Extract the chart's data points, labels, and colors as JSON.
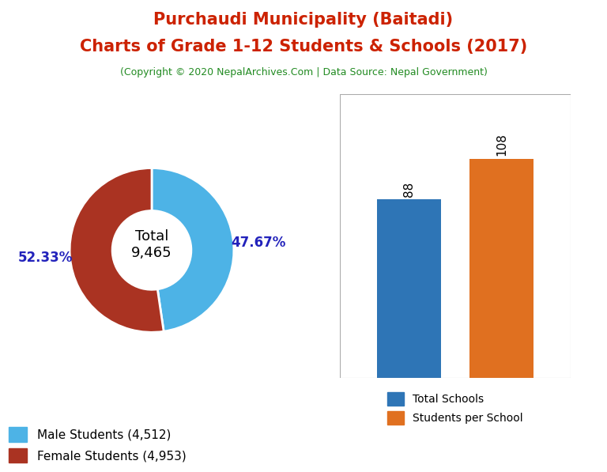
{
  "title_line1": "Purchaudi Municipality (Baitadi)",
  "title_line2": "Charts of Grade 1-12 Students & Schools (2017)",
  "subtitle": "(Copyright © 2020 NepalArchives.Com | Data Source: Nepal Government)",
  "title_color": "#cc2200",
  "subtitle_color": "#228B22",
  "male_pct": 47.67,
  "female_pct": 52.33,
  "donut_colors": [
    "#4db3e6",
    "#aa3322"
  ],
  "male_label": "Male Students (4,512)",
  "female_label": "Female Students (4,953)",
  "total_label": "Total\n9,465",
  "pct_color": "#2222bb",
  "bar_values": [
    88,
    108
  ],
  "bar_colors": [
    "#2E75B6",
    "#E07020"
  ],
  "bar_labels": [
    "Total Schools",
    "Students per School"
  ],
  "bar_value_labels": [
    "88",
    "108"
  ],
  "background_color": "#ffffff"
}
